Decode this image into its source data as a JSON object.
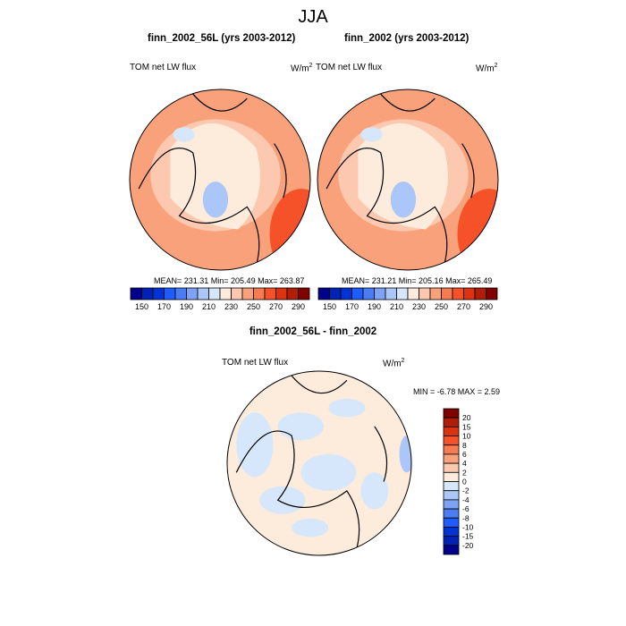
{
  "title": "JJA",
  "panels": [
    {
      "title": "finn_2002_56L (yrs 2003-2012)",
      "variable": "TOM net LW flux",
      "units": "W/m",
      "units_sup": "2",
      "stats": "MEAN= 231.31  Min= 205.49  Max= 263.87"
    },
    {
      "title": "finn_2002 (yrs 2003-2012)",
      "variable": "TOM net LW flux",
      "units": "W/m",
      "units_sup": "2",
      "stats": "MEAN= 231.21  Min= 205.16  Max= 265.49"
    },
    {
      "title": "finn_2002_56L - finn_2002",
      "variable": "TOM net LW flux",
      "units": "W/m",
      "units_sup": "2",
      "stats": "MIN =  -6.78 MAX =   2.59"
    }
  ],
  "chart_data": [
    {
      "type": "heatmap",
      "projection": "north polar stereographic",
      "title": "finn_2002_56L (yrs 2003-2012)",
      "mean": 231.31,
      "min": 205.49,
      "max": 263.87,
      "colorbar": {
        "orientation": "horizontal",
        "levels": [
          150,
          160,
          170,
          180,
          190,
          200,
          210,
          220,
          230,
          240,
          250,
          260,
          270,
          280,
          290
        ],
        "tick_labels": [
          "150",
          "170",
          "190",
          "210",
          "230",
          "250",
          "270",
          "290"
        ]
      }
    },
    {
      "type": "heatmap",
      "projection": "north polar stereographic",
      "title": "finn_2002 (yrs 2003-2012)",
      "mean": 231.21,
      "min": 205.16,
      "max": 265.49,
      "colorbar": {
        "orientation": "horizontal",
        "levels": [
          150,
          160,
          170,
          180,
          190,
          200,
          210,
          220,
          230,
          240,
          250,
          260,
          270,
          280,
          290
        ],
        "tick_labels": [
          "150",
          "170",
          "190",
          "210",
          "230",
          "250",
          "270",
          "290"
        ]
      }
    },
    {
      "type": "heatmap",
      "projection": "north polar stereographic",
      "title": "finn_2002_56L - finn_2002",
      "min": -6.78,
      "max": 2.59,
      "colorbar": {
        "orientation": "vertical",
        "levels": [
          -20,
          -15,
          -10,
          -8,
          -6,
          -4,
          -2,
          0,
          2,
          4,
          6,
          8,
          10,
          15,
          20
        ],
        "tick_labels": [
          "20",
          "15",
          "10",
          "8",
          "6",
          "4",
          "2",
          "0",
          "-2",
          "-4",
          "-6",
          "-8",
          "-10",
          "-15",
          "-20"
        ]
      }
    }
  ],
  "colors": [
    "#00008b",
    "#0022b5",
    "#0033d6",
    "#1f5cff",
    "#4a7cf2",
    "#7da2f6",
    "#abc6f8",
    "#d7e7fb",
    "#fdebdc",
    "#fcc9b0",
    "#f9a17b",
    "#f77b50",
    "#f5522a",
    "#dd3210",
    "#b21d05",
    "#800000"
  ]
}
